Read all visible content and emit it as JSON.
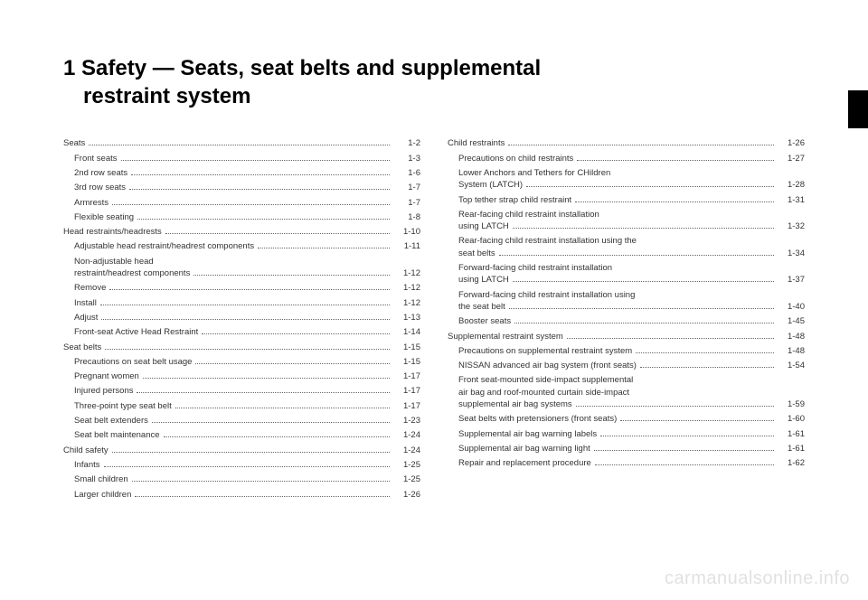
{
  "chapter_number": "1",
  "chapter_title_line1": "1 Safety — Seats, seat belts and supplemental",
  "chapter_title_line2": "restraint system",
  "watermark": "carmanualsonline.info",
  "left_column": [
    {
      "label": "Seats",
      "page": "1-2",
      "indent": false
    },
    {
      "label": "Front seats",
      "page": "1-3",
      "indent": true
    },
    {
      "label": "2nd row seats",
      "page": "1-6",
      "indent": true
    },
    {
      "label": "3rd row seats",
      "page": "1-7",
      "indent": true
    },
    {
      "label": "Armrests",
      "page": "1-7",
      "indent": true
    },
    {
      "label": "Flexible seating",
      "page": "1-8",
      "indent": true
    },
    {
      "label": "Head restraints/headrests",
      "page": "1-10",
      "indent": false
    },
    {
      "label": "Adjustable head restraint/headrest components",
      "page": "1-11",
      "indent": true
    },
    {
      "label": "Non-adjustable head",
      "page": "",
      "indent": true,
      "continue": true
    },
    {
      "label": "restraint/headrest components",
      "page": "1-12",
      "indent": true
    },
    {
      "label": "Remove",
      "page": "1-12",
      "indent": true
    },
    {
      "label": "Install",
      "page": "1-12",
      "indent": true
    },
    {
      "label": "Adjust",
      "page": "1-13",
      "indent": true
    },
    {
      "label": "Front-seat Active Head Restraint",
      "page": "1-14",
      "indent": true
    },
    {
      "label": "Seat belts",
      "page": "1-15",
      "indent": false
    },
    {
      "label": "Precautions on seat belt usage",
      "page": "1-15",
      "indent": true
    },
    {
      "label": "Pregnant women",
      "page": "1-17",
      "indent": true
    },
    {
      "label": "Injured persons",
      "page": "1-17",
      "indent": true
    },
    {
      "label": "Three-point type seat belt",
      "page": "1-17",
      "indent": true
    },
    {
      "label": "Seat belt extenders",
      "page": "1-23",
      "indent": true
    },
    {
      "label": "Seat belt maintenance",
      "page": "1-24",
      "indent": true
    },
    {
      "label": "Child safety",
      "page": "1-24",
      "indent": false
    },
    {
      "label": "Infants",
      "page": "1-25",
      "indent": true
    },
    {
      "label": "Small children",
      "page": "1-25",
      "indent": true
    },
    {
      "label": "Larger children",
      "page": "1-26",
      "indent": true
    }
  ],
  "right_column": [
    {
      "label": "Child restraints",
      "page": "1-26",
      "indent": false
    },
    {
      "label": "Precautions on child restraints",
      "page": "1-27",
      "indent": true
    },
    {
      "label": "Lower Anchors and Tethers for CHildren",
      "page": "",
      "indent": true,
      "continue": true
    },
    {
      "label": "System (LATCH)",
      "page": "1-28",
      "indent": true
    },
    {
      "label": "Top tether strap child restraint",
      "page": "1-31",
      "indent": true
    },
    {
      "label": "Rear-facing child restraint installation",
      "page": "",
      "indent": true,
      "continue": true
    },
    {
      "label": "using LATCH",
      "page": "1-32",
      "indent": true
    },
    {
      "label": "Rear-facing child restraint installation using the",
      "page": "",
      "indent": true,
      "continue": true
    },
    {
      "label": "seat belts",
      "page": "1-34",
      "indent": true
    },
    {
      "label": "Forward-facing child restraint installation",
      "page": "",
      "indent": true,
      "continue": true
    },
    {
      "label": "using LATCH",
      "page": "1-37",
      "indent": true
    },
    {
      "label": "Forward-facing child restraint installation using",
      "page": "",
      "indent": true,
      "continue": true
    },
    {
      "label": "the seat belt",
      "page": "1-40",
      "indent": true
    },
    {
      "label": "Booster seats",
      "page": "1-45",
      "indent": true
    },
    {
      "label": "Supplemental restraint system",
      "page": "1-48",
      "indent": false
    },
    {
      "label": "Precautions on supplemental restraint system",
      "page": "1-48",
      "indent": true
    },
    {
      "label": "NISSAN advanced air bag system (front seats)",
      "page": "1-54",
      "indent": true
    },
    {
      "label": "Front seat-mounted side-impact supplemental",
      "page": "",
      "indent": true,
      "continue": true
    },
    {
      "label": "air bag and roof-mounted curtain side-impact",
      "page": "",
      "indent": true,
      "continue": true
    },
    {
      "label": "supplemental air bag systems",
      "page": "1-59",
      "indent": true
    },
    {
      "label": "Seat belts with pretensioners (front seats)",
      "page": "1-60",
      "indent": true
    },
    {
      "label": "Supplemental air bag warning labels",
      "page": "1-61",
      "indent": true
    },
    {
      "label": "Supplemental air bag warning light",
      "page": "1-61",
      "indent": true
    },
    {
      "label": "Repair and replacement procedure",
      "page": "1-62",
      "indent": true
    }
  ]
}
